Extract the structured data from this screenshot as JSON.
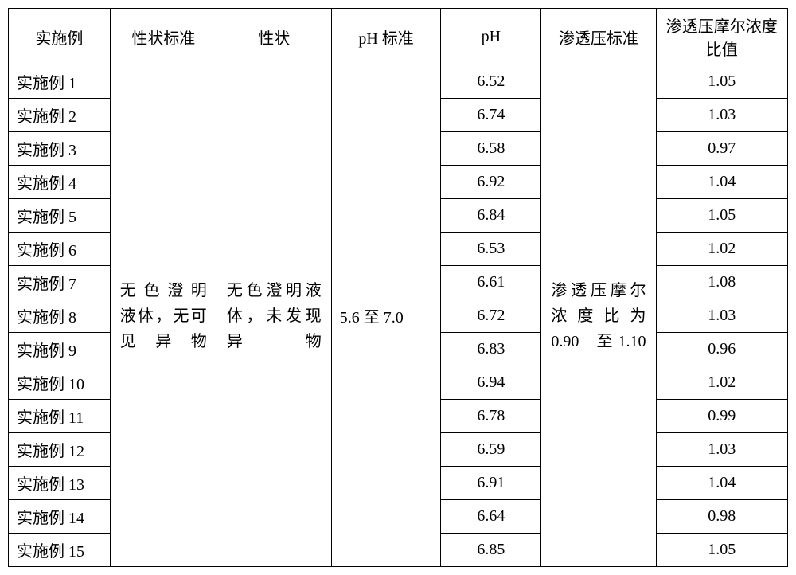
{
  "table": {
    "headers": [
      "实施例",
      "性状标准",
      "性状",
      "pH 标准",
      "pH",
      "渗透压标准",
      "渗透压摩尔浓度比值"
    ],
    "merged": {
      "appearance_standard": "无色澄明　液体，无可见异物",
      "appearance": "无色澄明液体，未发现异物",
      "ph_standard": "5.6 至 7.0",
      "osmo_standard": "渗透压摩尔浓度比为 0.90　至 1.10"
    },
    "rows": [
      {
        "name": "实施例 1",
        "ph": "6.52",
        "ratio": "1.05"
      },
      {
        "name": "实施例 2",
        "ph": "6.74",
        "ratio": "1.03"
      },
      {
        "name": "实施例 3",
        "ph": "6.58",
        "ratio": "0.97"
      },
      {
        "name": "实施例 4",
        "ph": "6.92",
        "ratio": "1.04"
      },
      {
        "name": "实施例 5",
        "ph": "6.84",
        "ratio": "1.05"
      },
      {
        "name": "实施例 6",
        "ph": "6.53",
        "ratio": "1.02"
      },
      {
        "name": "实施例 7",
        "ph": "6.61",
        "ratio": "1.08"
      },
      {
        "name": "实施例 8",
        "ph": "6.72",
        "ratio": "1.03"
      },
      {
        "name": "实施例 9",
        "ph": "6.83",
        "ratio": "0.96"
      },
      {
        "name": "实施例 10",
        "ph": "6.94",
        "ratio": "1.02"
      },
      {
        "name": "实施例 11",
        "ph": "6.78",
        "ratio": "0.99"
      },
      {
        "name": "实施例 12",
        "ph": "6.59",
        "ratio": "1.03"
      },
      {
        "name": "实施例 13",
        "ph": "6.91",
        "ratio": "1.04"
      },
      {
        "name": "实施例 14",
        "ph": "6.64",
        "ratio": "0.98"
      },
      {
        "name": "实施例 15",
        "ph": "6.85",
        "ratio": "1.05"
      }
    ],
    "colors": {
      "border": "#000000",
      "background": "#ffffff",
      "text": "#000000"
    },
    "font_size_pt": 15
  }
}
